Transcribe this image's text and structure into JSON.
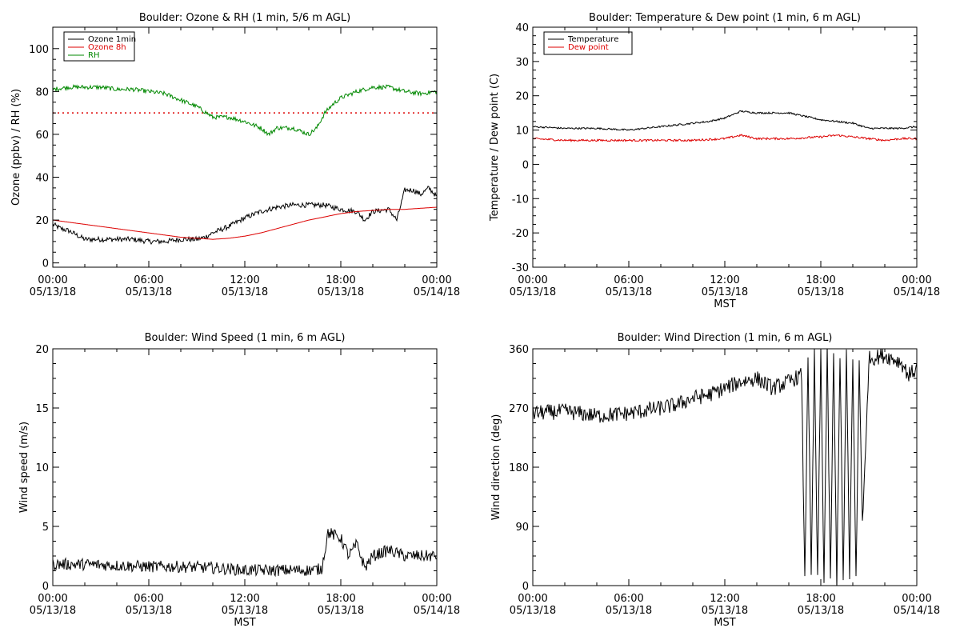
{
  "chart_data": [
    {
      "type": "line",
      "title": "Boulder: Ozone & RH (1 min, 5/6 m AGL)",
      "xlabel": "",
      "ylabel": "Ozone (ppbv) / RH (%)",
      "xlim": [
        0,
        24
      ],
      "ylim": [
        -2,
        110
      ],
      "yticks": [
        0,
        20,
        40,
        60,
        80,
        100
      ],
      "x_tick_labels": [
        {
          "x": 0,
          "line1": "00:00",
          "line2": "05/13/18"
        },
        {
          "x": 6,
          "line1": "06:00",
          "line2": "05/13/18"
        },
        {
          "x": 12,
          "line1": "12:00",
          "line2": "05/13/18"
        },
        {
          "x": 18,
          "line1": "18:00",
          "line2": "05/13/18"
        },
        {
          "x": 24,
          "line1": "00:00",
          "line2": "05/14/18"
        }
      ],
      "legend": {
        "position": "top-left",
        "items": [
          {
            "label": "Ozone 1min",
            "color": "#000000"
          },
          {
            "label": "Ozone 8h",
            "color": "#dd0000"
          },
          {
            "label": "RH",
            "color": "#008800"
          }
        ]
      },
      "reference_line": {
        "y": 70,
        "color": "#dd0000",
        "style": "dotted"
      },
      "series": [
        {
          "name": "Ozone 1min",
          "color": "#000000",
          "noise": 1.2,
          "x": [
            0,
            0.5,
            1,
            1.5,
            2,
            3,
            4,
            5,
            6,
            7,
            8,
            9,
            9.5,
            10,
            11,
            12,
            13,
            14,
            15,
            16,
            17,
            18,
            19,
            19.5,
            20,
            21,
            21.5,
            22,
            22.5,
            23,
            23.5,
            24
          ],
          "y": [
            18,
            16,
            15,
            13,
            11,
            11,
            11,
            11,
            10,
            10,
            11,
            11,
            12,
            14,
            17,
            21,
            24,
            26,
            27,
            27,
            27,
            25,
            24,
            20,
            24,
            25,
            20,
            34,
            34,
            32,
            35,
            31
          ]
        },
        {
          "name": "Ozone 8h",
          "color": "#dd0000",
          "noise": 0,
          "x": [
            0,
            2,
            4,
            6,
            7,
            8,
            9,
            10,
            11,
            12,
            13,
            14,
            15,
            16,
            17,
            18,
            19,
            20,
            21,
            22,
            23,
            24
          ],
          "y": [
            20,
            18,
            16,
            14,
            13,
            12,
            11.5,
            11,
            11.5,
            12.5,
            14,
            16,
            18,
            20,
            21.5,
            23,
            24,
            24.5,
            25,
            25,
            25.5,
            26
          ]
        },
        {
          "name": "RH",
          "color": "#008800",
          "noise": 1.0,
          "x": [
            0,
            1,
            2,
            3,
            4,
            5,
            6,
            7,
            8,
            9,
            10,
            11,
            12,
            13,
            13.5,
            14,
            15,
            16,
            16.5,
            17,
            17.5,
            18,
            19,
            20,
            21,
            22,
            23,
            24
          ],
          "y": [
            81,
            82,
            82,
            82,
            81,
            81,
            80,
            79,
            76,
            73,
            68,
            68,
            66,
            63,
            60,
            63,
            63,
            60,
            63,
            70,
            74,
            77,
            80,
            82,
            82,
            80,
            79,
            80
          ]
        }
      ]
    },
    {
      "type": "line",
      "title": "Boulder: Temperature & Dew point (1 min, 6 m AGL)",
      "xlabel": "MST",
      "ylabel": "Temperature / Dew point (C)",
      "xlim": [
        0,
        24
      ],
      "ylim": [
        -30,
        40
      ],
      "yticks": [
        -30,
        -20,
        -10,
        0,
        10,
        20,
        30,
        40
      ],
      "x_tick_labels": [
        {
          "x": 0,
          "line1": "00:00",
          "line2": "05/13/18"
        },
        {
          "x": 6,
          "line1": "06:00",
          "line2": "05/13/18"
        },
        {
          "x": 12,
          "line1": "12:00",
          "line2": "05/13/18"
        },
        {
          "x": 18,
          "line1": "18:00",
          "line2": "05/13/18"
        },
        {
          "x": 24,
          "line1": "00:00",
          "line2": "05/14/18"
        }
      ],
      "legend": {
        "position": "top-left",
        "items": [
          {
            "label": "Temperature",
            "color": "#000000"
          },
          {
            "label": "Dew point",
            "color": "#dd0000"
          }
        ]
      },
      "series": [
        {
          "name": "Temperature",
          "color": "#000000",
          "noise": 0.25,
          "x": [
            0,
            2,
            4,
            6,
            7,
            8,
            9,
            10,
            11,
            12,
            13,
            14,
            15,
            16,
            17,
            18,
            19,
            20,
            21,
            22,
            23,
            24
          ],
          "y": [
            11,
            10.5,
            10.5,
            10,
            10.5,
            11,
            11.5,
            12,
            12.5,
            13.5,
            15.5,
            15,
            15,
            15,
            14,
            13,
            12.5,
            12,
            10.5,
            10.5,
            10.5,
            11
          ]
        },
        {
          "name": "Dew point",
          "color": "#dd0000",
          "noise": 0.3,
          "x": [
            0,
            2,
            4,
            6,
            8,
            10,
            12,
            13,
            14,
            16,
            18,
            19,
            20,
            21,
            22,
            23,
            24
          ],
          "y": [
            7.5,
            7,
            7,
            7,
            7,
            7,
            7.5,
            8.5,
            7.5,
            7.5,
            8,
            8.5,
            8,
            7.5,
            7,
            7.5,
            7.5
          ]
        }
      ]
    },
    {
      "type": "line",
      "title": "Boulder: Wind Speed (1 min, 6 m AGL)",
      "xlabel": "MST",
      "ylabel": "Wind speed (m/s)",
      "xlim": [
        0,
        24
      ],
      "ylim": [
        0,
        20
      ],
      "yticks": [
        0,
        5,
        10,
        15,
        20
      ],
      "x_tick_labels": [
        {
          "x": 0,
          "line1": "00:00",
          "line2": "05/13/18"
        },
        {
          "x": 6,
          "line1": "06:00",
          "line2": "05/13/18"
        },
        {
          "x": 12,
          "line1": "12:00",
          "line2": "05/13/18"
        },
        {
          "x": 18,
          "line1": "18:00",
          "line2": "05/13/18"
        },
        {
          "x": 24,
          "line1": "00:00",
          "line2": "05/14/18"
        }
      ],
      "series": [
        {
          "name": "",
          "color": "#000000",
          "noise": 0.5,
          "x": [
            0,
            2,
            4,
            6,
            8,
            10,
            12,
            14,
            16,
            16.8,
            17.2,
            18,
            18.5,
            19,
            19.5,
            20,
            21,
            22,
            23,
            24
          ],
          "y": [
            1.8,
            1.8,
            1.7,
            1.6,
            1.6,
            1.5,
            1.3,
            1.3,
            1.3,
            1.4,
            4.5,
            4.0,
            2.5,
            3.5,
            1.5,
            2.5,
            3.0,
            2.5,
            2.5,
            2.5
          ]
        }
      ]
    },
    {
      "type": "line",
      "title": "Boulder: Wind Direction (1 min, 6 m AGL)",
      "xlabel": "MST",
      "ylabel": "Wind direction (deg)",
      "xlim": [
        0,
        24
      ],
      "ylim": [
        0,
        360
      ],
      "yticks": [
        0,
        90,
        180,
        270,
        360
      ],
      "x_tick_labels": [
        {
          "x": 0,
          "line1": "00:00",
          "line2": "05/13/18"
        },
        {
          "x": 6,
          "line1": "06:00",
          "line2": "05/13/18"
        },
        {
          "x": 12,
          "line1": "12:00",
          "line2": "05/13/18"
        },
        {
          "x": 18,
          "line1": "18:00",
          "line2": "05/13/18"
        },
        {
          "x": 24,
          "line1": "00:00",
          "line2": "05/14/18"
        }
      ],
      "series": [
        {
          "name": "",
          "color": "#000000",
          "noise": 12,
          "x": [
            0,
            2,
            4,
            6,
            8,
            9,
            10,
            11,
            12,
            13,
            14,
            15,
            16,
            16.8,
            17,
            17.2,
            17.4,
            17.6,
            17.8,
            18,
            18.2,
            18.4,
            18.6,
            18.8,
            19,
            19.2,
            19.4,
            19.6,
            19.8,
            20,
            20.2,
            20.4,
            20.6,
            20.8,
            21,
            22,
            22.5,
            23,
            23.5,
            24
          ],
          "y": [
            262,
            265,
            258,
            262,
            270,
            275,
            285,
            290,
            300,
            310,
            315,
            300,
            310,
            320,
            5,
            355,
            10,
            350,
            5,
            355,
            5,
            358,
            3,
            350,
            5,
            355,
            5,
            355,
            10,
            350,
            5,
            340,
            100,
            200,
            345,
            350,
            345,
            340,
            320,
            330
          ]
        }
      ]
    }
  ]
}
